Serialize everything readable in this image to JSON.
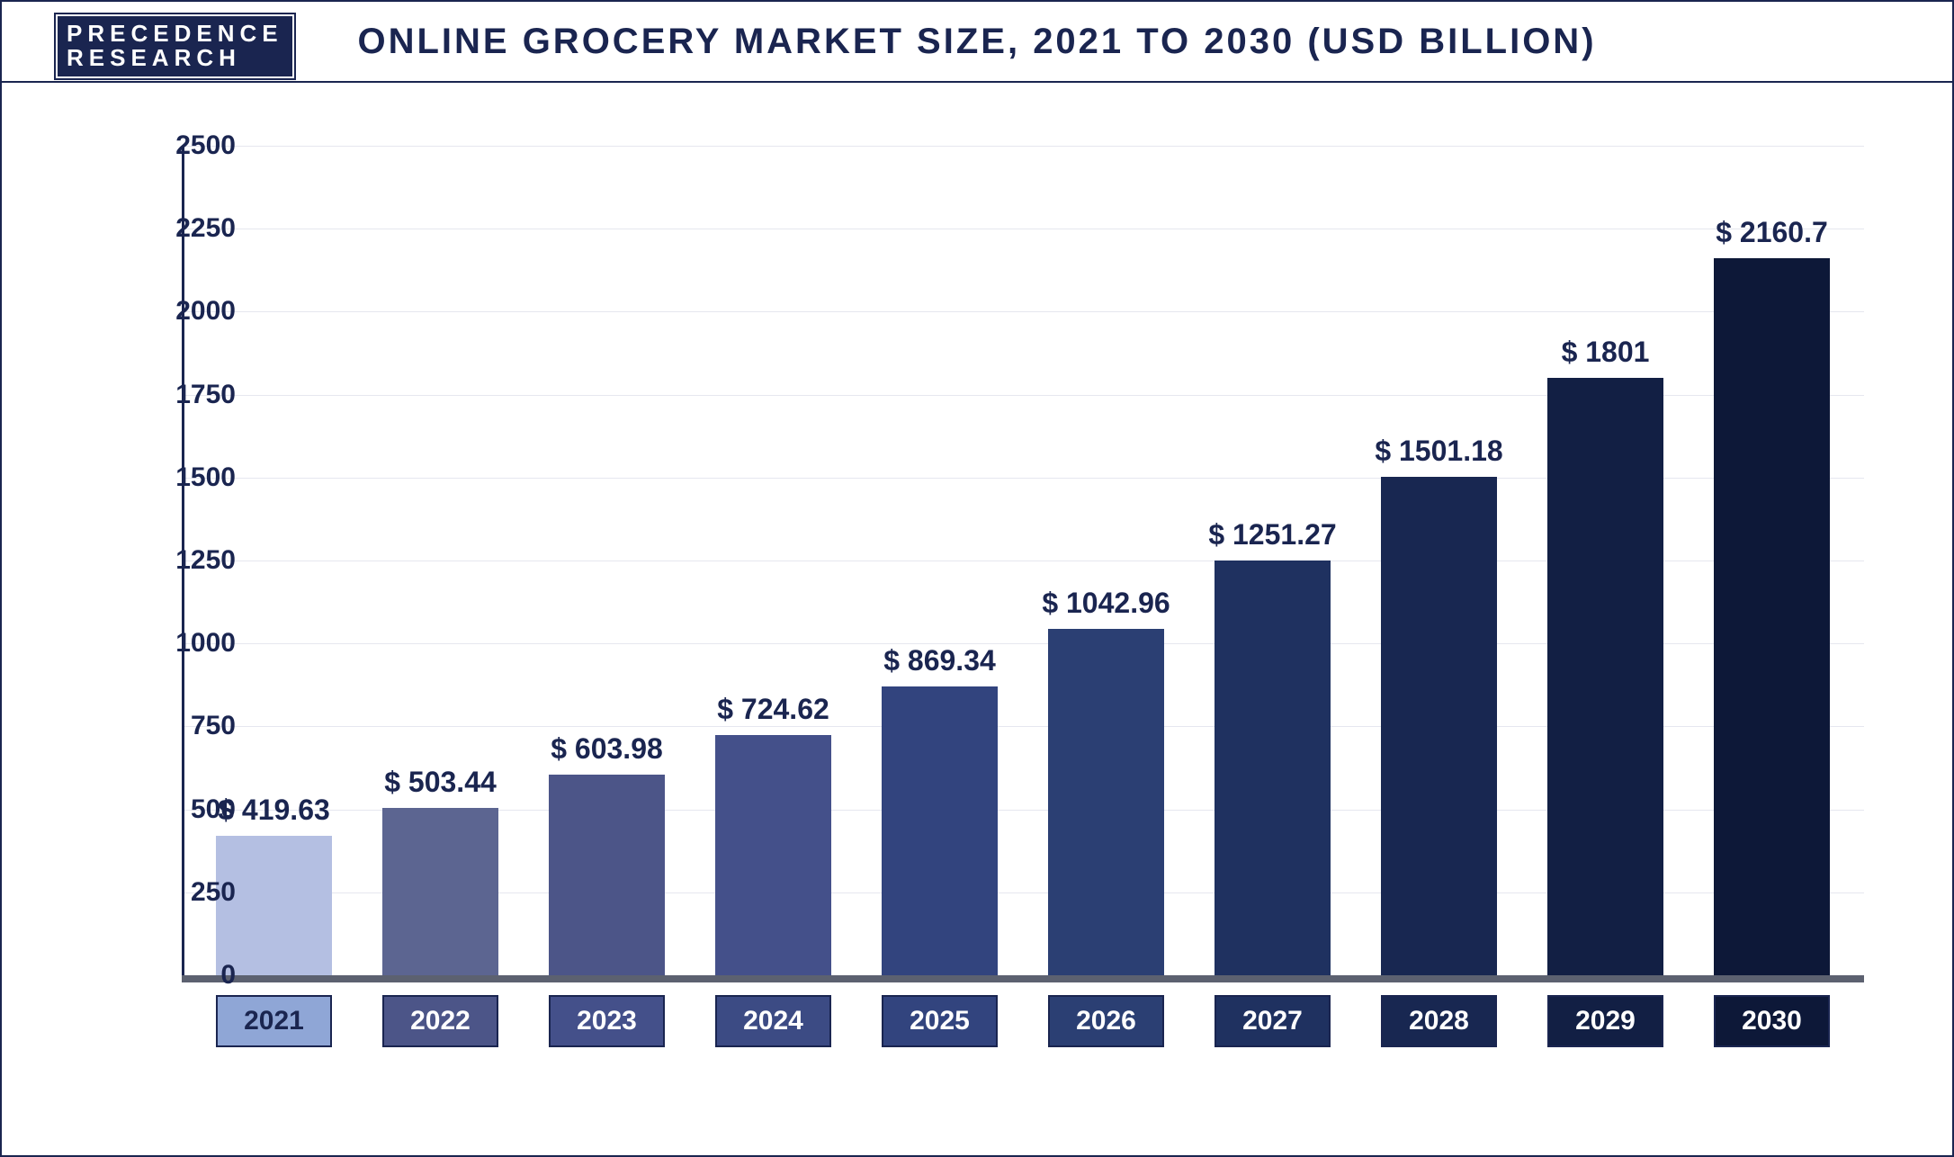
{
  "logo": {
    "line1": "PRECEDENCE",
    "line2": "RESEARCH",
    "bg_color": "#1a2550",
    "text_color": "#ffffff"
  },
  "chart": {
    "type": "bar",
    "title": "ONLINE GROCERY MARKET SIZE, 2021 TO 2030 (USD BILLION)",
    "title_fontsize": 40,
    "title_color": "#1a2550",
    "background_color": "#ffffff",
    "border_color": "#1a2550",
    "grid_color": "#e6e7ef",
    "axis_color": "#1a2550",
    "x_axis_bar_color": "#5c6170",
    "ylim": [
      0,
      2500
    ],
    "yticks": [
      0,
      250,
      500,
      750,
      1000,
      1250,
      1500,
      1750,
      2000,
      2250,
      2500
    ],
    "value_prefix": "$ ",
    "value_fontsize": 32,
    "value_color": "#1a2550",
    "axis_label_fontsize": 30,
    "axis_label_color": "#1a2550",
    "bar_width": 0.7,
    "categories": [
      "2021",
      "2022",
      "2023",
      "2024",
      "2025",
      "2026",
      "2027",
      "2028",
      "2029",
      "2030"
    ],
    "values": [
      419.63,
      503.44,
      603.98,
      724.62,
      869.34,
      1042.96,
      1251.27,
      1501.18,
      1801,
      2160.7
    ],
    "value_labels": [
      "419.63",
      "503.44",
      "603.98",
      "724.62",
      "869.34",
      "1042.96",
      "1251.27",
      "1501.18",
      "1801",
      "2160.7"
    ],
    "bar_colors": [
      "#b4bfe2",
      "#5c6591",
      "#4c5588",
      "#44508a",
      "#32447e",
      "#2b3f73",
      "#1f3160",
      "#182751",
      "#121f44",
      "#0d1838"
    ],
    "x_label_bg": [
      "#8fa6d6",
      "#4c5588",
      "#44508a",
      "#3c4b84",
      "#32447e",
      "#2b3f73",
      "#1f3160",
      "#182751",
      "#121f44",
      "#0d1838"
    ],
    "x_label_text": [
      "#1a2550",
      "#ffffff",
      "#ffffff",
      "#ffffff",
      "#ffffff",
      "#ffffff",
      "#ffffff",
      "#ffffff",
      "#ffffff",
      "#ffffff"
    ],
    "x_label_border": [
      "#1a2550",
      "#1a2550",
      "#1a2550",
      "#1a2550",
      "#1a2550",
      "#1a2550",
      "#1a2550",
      "#1a2550",
      "#1a2550",
      "#1a2550"
    ]
  }
}
